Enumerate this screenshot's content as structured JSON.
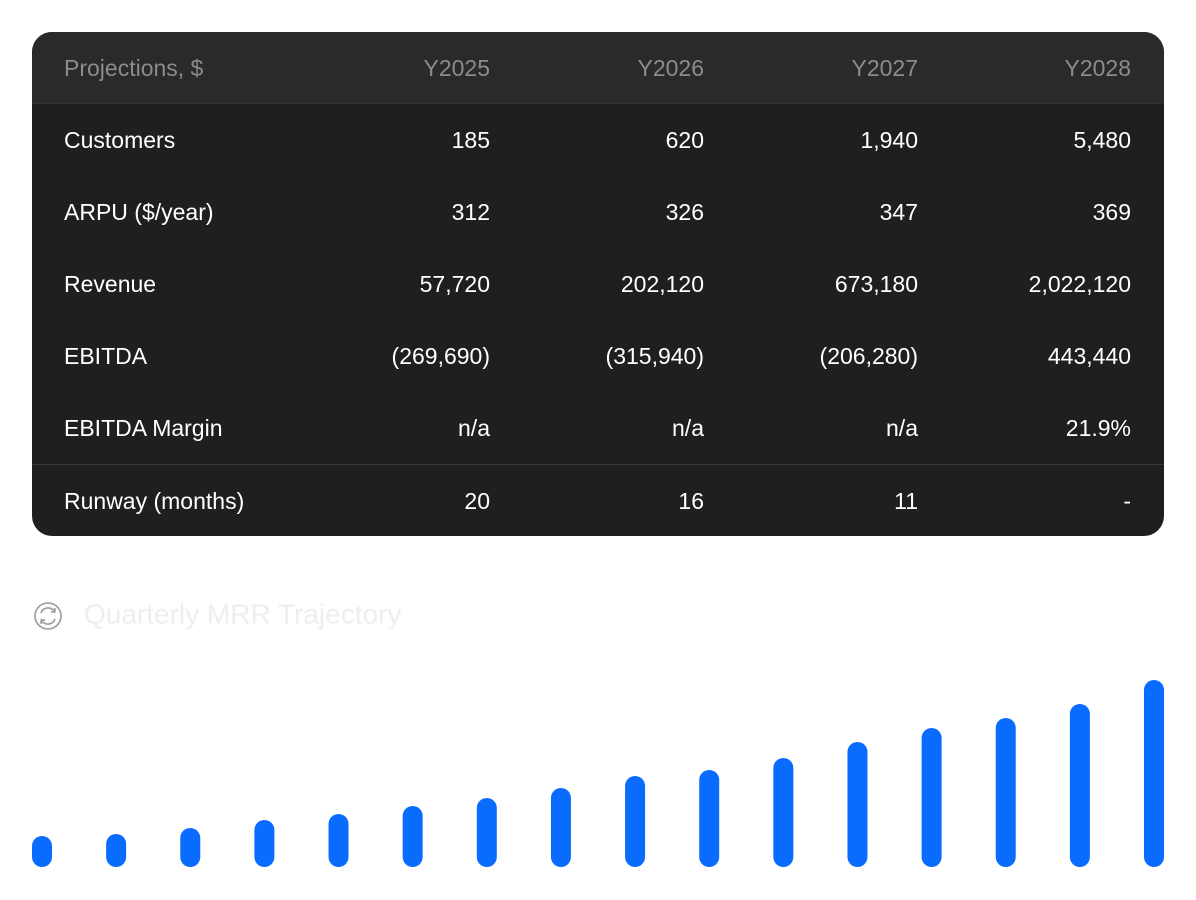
{
  "table": {
    "header": [
      "Projections, $",
      "Y2025",
      "Y2026",
      "Y2027",
      "Y2028"
    ],
    "rows": [
      [
        "Customers",
        "185",
        "620",
        "1,940",
        "5,480"
      ],
      [
        "ARPU ($/year)",
        "312",
        "326",
        "347",
        "369"
      ],
      [
        "Revenue",
        "57,720",
        "202,120",
        "673,180",
        "2,022,120"
      ],
      [
        "EBITDA",
        "(269,690)",
        "(315,940)",
        "(206,280)",
        "443,440"
      ],
      [
        "EBITDA Margin",
        "n/a",
        "n/a",
        "n/a",
        "21.9%"
      ],
      [
        "Runway (months)",
        "20",
        "16",
        "11",
        "-"
      ]
    ]
  },
  "chart_data": {
    "type": "bar",
    "title": "Quarterly MRR Trajectory",
    "values": [
      31,
      33,
      39,
      47,
      53,
      61,
      69,
      79,
      91,
      97,
      109,
      125,
      139,
      149,
      163,
      187
    ],
    "color": "#0a6cff"
  }
}
